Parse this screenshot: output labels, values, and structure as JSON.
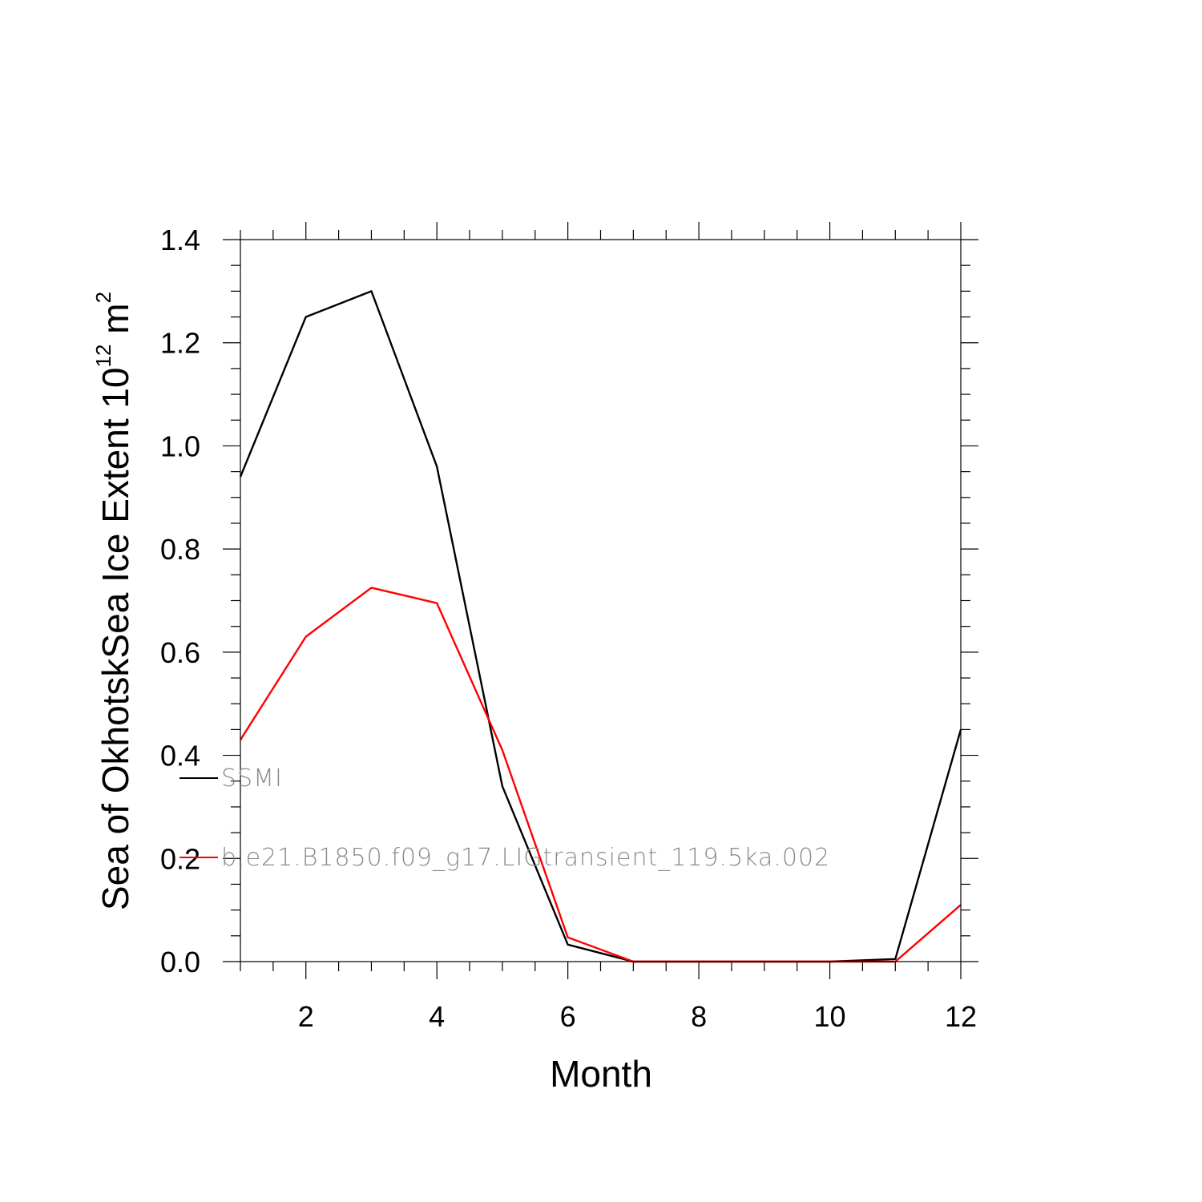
{
  "chart_data": {
    "type": "line",
    "xlabel": "Month",
    "ylabel": {
      "prefix": "Sea of OkhotskSea Ice Extent 10",
      "exponent1": "12",
      "unit": " m",
      "exponent2": "2"
    },
    "xlim": [
      1,
      12
    ],
    "ylim": [
      0,
      1.4
    ],
    "xticks": [
      2,
      4,
      6,
      8,
      10,
      12
    ],
    "xtick_labels": [
      "2",
      "4",
      "6",
      "8",
      "10",
      "12"
    ],
    "yticks": [
      0,
      0.2,
      0.4,
      0.6,
      0.8,
      1.0,
      1.2,
      1.4
    ],
    "ytick_labels": [
      "0.0",
      "0.2",
      "0.4",
      "0.6",
      "0.8",
      "1.0",
      "1.2",
      "1.4"
    ],
    "x": [
      1,
      2,
      3,
      4,
      5,
      6,
      7,
      8,
      9,
      10,
      11,
      12
    ],
    "series": [
      {
        "name": "SSMI",
        "color": "#000000",
        "values": [
          0.94,
          1.25,
          1.3,
          0.96,
          0.34,
          0.033,
          0.0,
          0.0,
          0.0,
          0.0,
          0.005,
          0.45
        ]
      },
      {
        "name": "b.e21.B1850.f09_g17.LIGtransient_119.5ka.002",
        "color": "#ff0000",
        "values": [
          0.43,
          0.63,
          0.725,
          0.695,
          0.41,
          0.047,
          0.0,
          0.0,
          0.0,
          0.0,
          0.0,
          0.11
        ]
      }
    ],
    "legend": "overlaid on left side of plot",
    "grid": false
  }
}
